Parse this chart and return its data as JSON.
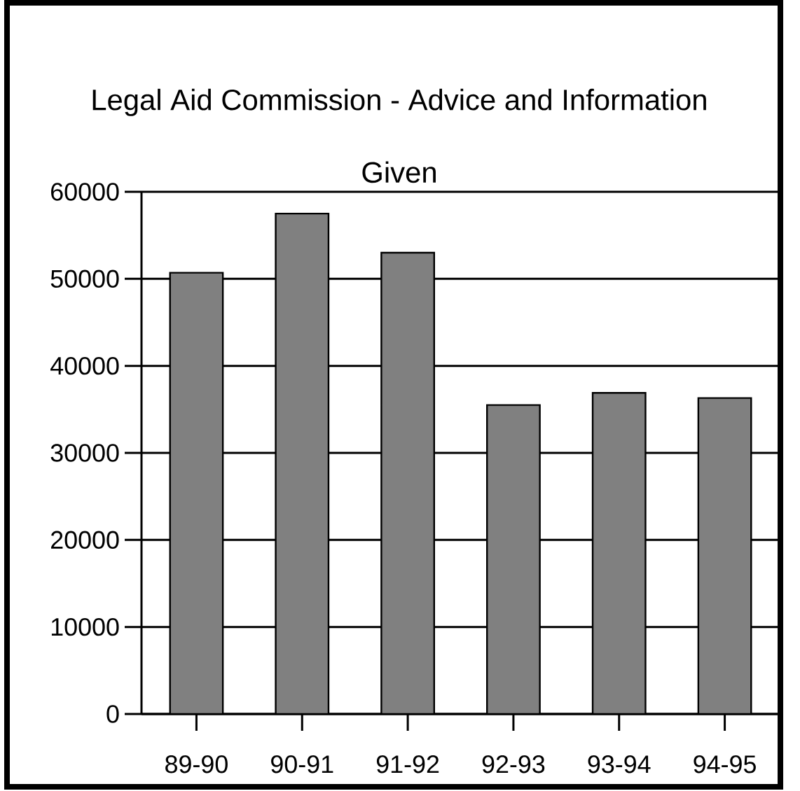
{
  "chart_data": {
    "type": "bar",
    "title": "Legal Aid Commission - Advice and Information Given",
    "categories": [
      "89-90",
      "90-91",
      "91-92",
      "92-93",
      "93-94",
      "94-95"
    ],
    "values": [
      50700,
      57500,
      53000,
      35500,
      36900,
      36300
    ],
    "color": "#808080",
    "ylim": [
      0,
      60000
    ],
    "yticks": [
      0,
      10000,
      20000,
      30000,
      40000,
      50000,
      60000
    ],
    "grid": "y"
  }
}
